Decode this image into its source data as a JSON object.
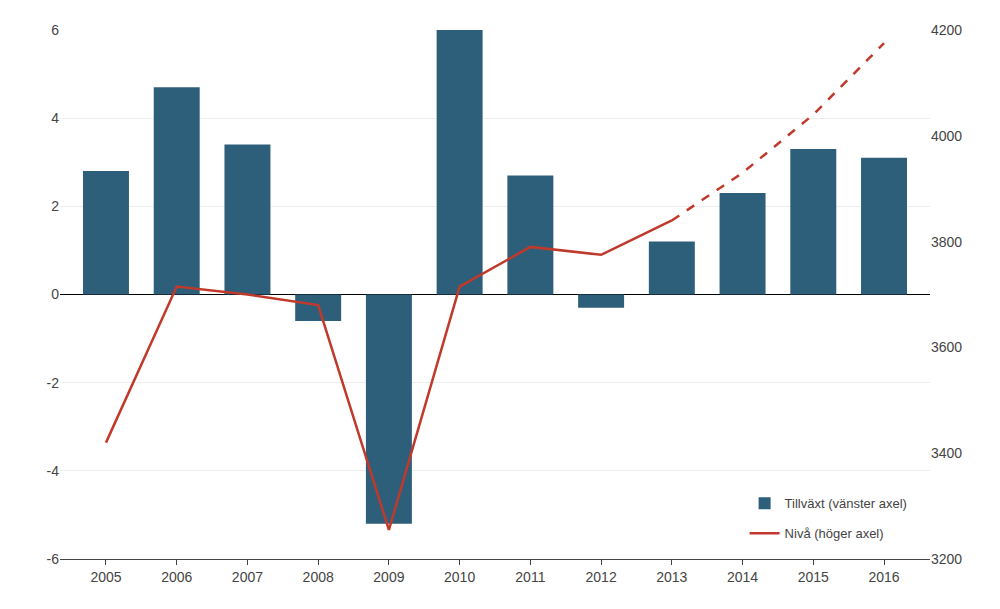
{
  "chart_data": {
    "type": "bar",
    "x": [
      2005,
      2006,
      2007,
      2008,
      2009,
      2010,
      2011,
      2012,
      2013,
      2014,
      2015,
      2016
    ],
    "xlim": [
      2004.35,
      2016.65
    ],
    "xticks": [
      2005,
      2006,
      2007,
      2008,
      2009,
      2010,
      2011,
      2012,
      2013,
      2014,
      2015,
      2016
    ],
    "ylim": [
      -6,
      6
    ],
    "yticks": [
      -6,
      -4,
      -2,
      0,
      2,
      4,
      6
    ],
    "y2lim": [
      3200,
      4200
    ],
    "y2ticks": [
      3200,
      3400,
      3600,
      3800,
      4000,
      4200
    ],
    "grid": true,
    "legend": "lower right",
    "series": [
      {
        "name": "Tillväxt (vänster axel)",
        "type": "bar",
        "color": "#2E5F7A",
        "values": [
          2.8,
          4.7,
          3.4,
          -0.6,
          -5.2,
          6.0,
          2.7,
          -0.3,
          1.2,
          2.3,
          3.3,
          3.1
        ]
      },
      {
        "name": "Nivå (höger axel)",
        "type": "line",
        "axis": "y2",
        "color": "#C0392B",
        "line_style": "solid",
        "values": [
          3420,
          3715,
          3700,
          3680,
          3255,
          3715,
          3790,
          3775,
          3840,
          null,
          null,
          null
        ]
      },
      {
        "name": "Nivå (höger axel)",
        "type": "line",
        "axis": "y2",
        "color": "#C0392B",
        "line_style": "dashed",
        "values": [
          null,
          null,
          null,
          null,
          null,
          null,
          null,
          null,
          3840,
          3930,
          4040,
          4175
        ]
      }
    ]
  }
}
